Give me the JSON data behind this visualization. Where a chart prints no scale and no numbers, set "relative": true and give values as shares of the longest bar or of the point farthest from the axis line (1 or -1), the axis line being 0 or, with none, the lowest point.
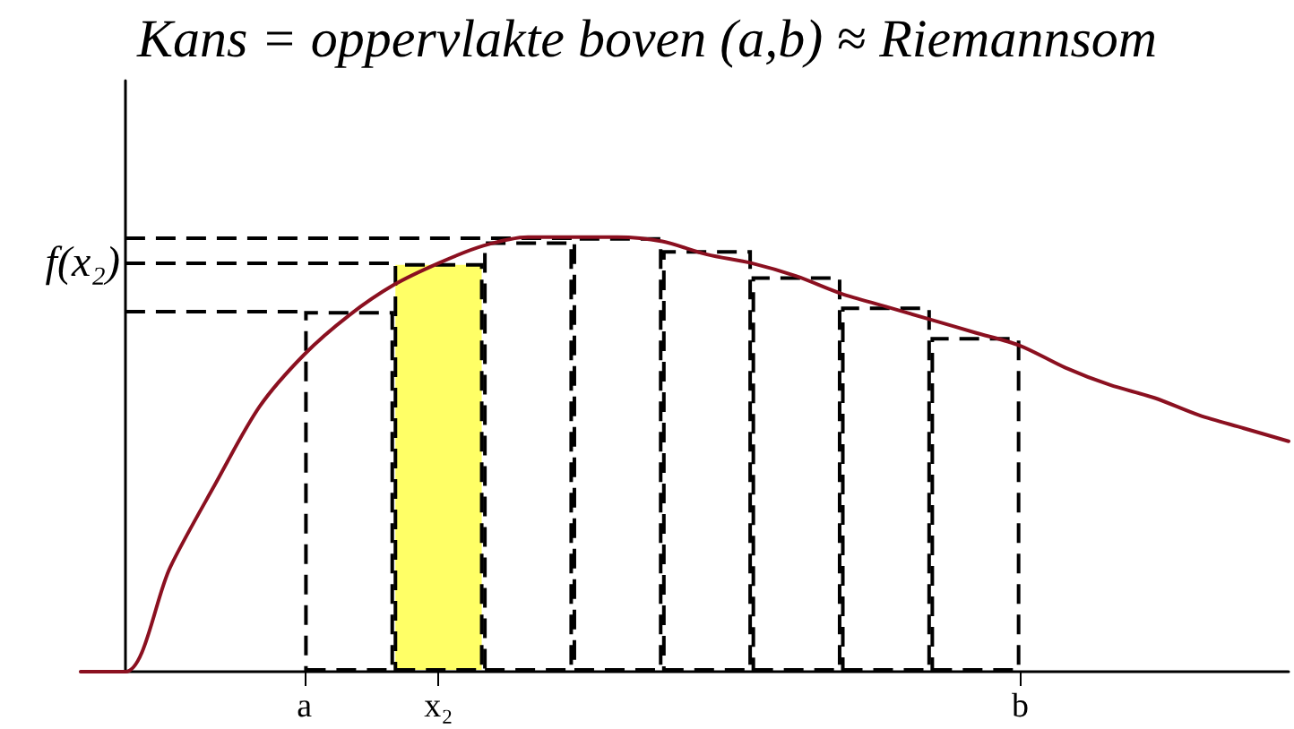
{
  "chart_data": {
    "type": "bar",
    "title": "Kans = oppervlakte boven (a,b) ≈ Riemannsom",
    "relative": true,
    "categories": [
      null,
      null,
      null,
      null,
      null,
      "a",
      null,
      null,
      "x₂",
      null,
      null,
      null,
      null,
      null,
      null,
      null,
      null,
      null,
      null,
      null,
      null,
      "b",
      null,
      null,
      null,
      null,
      null,
      null
    ],
    "series": [
      {
        "values": [
          null,
          null,
          null,
          null,
          null,
          null,
          0.83,
          null,
          0.94,
          null,
          0.99,
          null,
          1.0,
          null,
          0.97,
          null,
          0.91,
          null,
          0.84,
          null,
          0.77,
          null,
          null,
          null,
          null,
          null,
          null,
          null
        ],
        "colors": [
          null,
          null,
          null,
          null,
          null,
          null,
          "#ffffff",
          null,
          "#ffff66",
          null,
          "#ffffff",
          null,
          "#ffffff",
          null,
          "#ffffff",
          null,
          "#ffffff",
          null,
          "#ffffff",
          null,
          "#ffffff",
          null,
          null,
          null,
          null,
          null,
          null,
          null
        ],
        "line_style": "dashed"
      },
      {
        "type": "line",
        "color": "#8b1020",
        "marker": "none",
        "values": [
          0,
          0,
          0.24,
          0.43,
          0.61,
          0.73,
          0.82,
          0.89,
          0.94,
          0.98,
          1.0,
          1.0,
          1.0,
          0.99,
          0.96,
          0.94,
          0.91,
          0.87,
          0.84,
          0.81,
          0.78,
          0.75,
          0.7,
          0.66,
          0.63,
          0.59,
          0.56,
          0.53
        ]
      }
    ],
    "ref_lines": [
      {
        "axis": "y",
        "value": 0.83,
        "label": null,
        "color": "#000000",
        "line_style": "dashed"
      },
      {
        "axis": "y",
        "value": 0.94,
        "label": "f(x₂)",
        "color": "#000000",
        "line_style": "dashed"
      },
      {
        "axis": "y",
        "value": 1.0,
        "label": null,
        "color": "#000000",
        "line_style": "dashed"
      }
    ]
  }
}
